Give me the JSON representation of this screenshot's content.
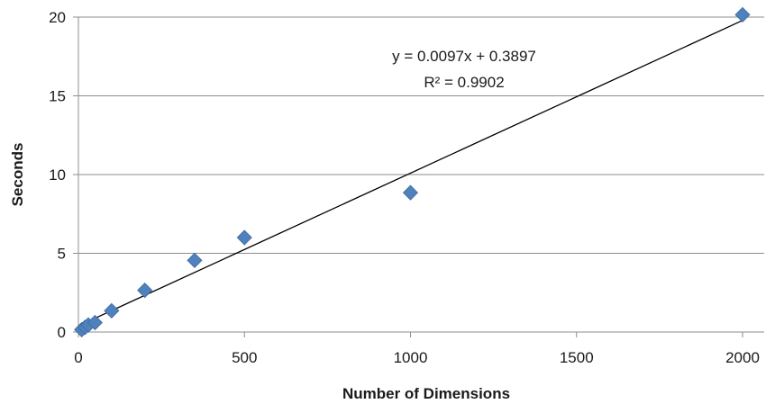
{
  "chart_data": {
    "type": "scatter",
    "title": "",
    "xlabel": "Number of Dimensions",
    "ylabel": "Seconds",
    "xlim": [
      0,
      2000
    ],
    "ylim": [
      0,
      20
    ],
    "xticks": [
      0,
      500,
      1000,
      1500,
      2000
    ],
    "yticks": [
      0,
      5,
      10,
      15,
      20
    ],
    "grid": "horizontal",
    "legend": "none",
    "series": [
      {
        "marker": "diamond",
        "color": "#4f81bd",
        "x": [
          10,
          20,
          30,
          50,
          100,
          200,
          350,
          500,
          1000,
          2000
        ],
        "y": [
          0.15,
          0.3,
          0.45,
          0.6,
          1.35,
          2.65,
          4.55,
          6.0,
          8.85,
          20.15
        ]
      }
    ],
    "trendline": {
      "type": "linear",
      "slope": 0.0097,
      "intercept": 0.3897,
      "color": "#000000",
      "x_range": [
        10,
        2000
      ],
      "equation": "y = 0.0097x + 0.3897",
      "r_squared": "R² = 0.9902"
    }
  }
}
